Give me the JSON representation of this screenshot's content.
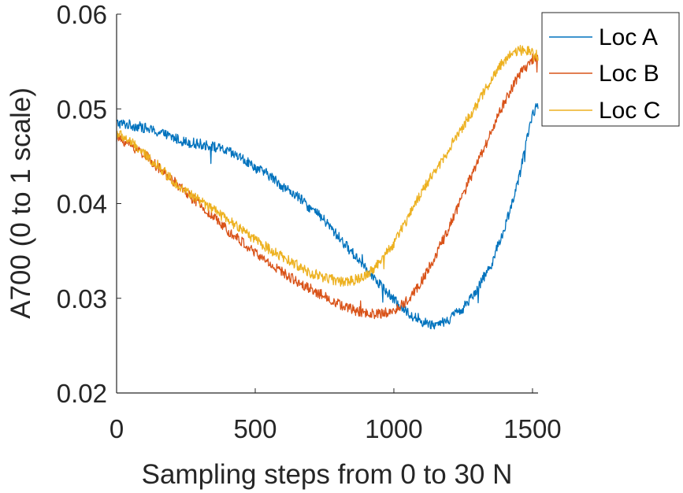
{
  "chart_data": {
    "type": "line",
    "title": "",
    "xlabel": "Sampling steps from 0 to 30 N",
    "ylabel": "A700 (0 to 1 scale)",
    "xlim": [
      0,
      1520
    ],
    "ylim": [
      0.02,
      0.06
    ],
    "xticks": [
      0,
      500,
      1000,
      1500
    ],
    "xtick_labels": [
      "0",
      "500",
      "1000",
      "1500"
    ],
    "yticks": [
      0.02,
      0.03,
      0.04,
      0.05,
      0.06
    ],
    "ytick_labels": [
      "0.02",
      "0.03",
      "0.04",
      "0.05",
      "0.06"
    ],
    "grid": false,
    "legend_position": "top-right",
    "series": [
      {
        "name": "Loc A",
        "color": "#0072BD",
        "x": [
          0,
          50,
          100,
          150,
          200,
          250,
          300,
          350,
          400,
          450,
          500,
          550,
          600,
          650,
          700,
          750,
          800,
          850,
          900,
          950,
          1000,
          1050,
          1100,
          1150,
          1200,
          1250,
          1300,
          1350,
          1400,
          1450,
          1500,
          1520
        ],
        "y": [
          0.0485,
          0.0483,
          0.048,
          0.0475,
          0.047,
          0.0465,
          0.0463,
          0.046,
          0.0455,
          0.0448,
          0.0438,
          0.043,
          0.0418,
          0.0408,
          0.0395,
          0.0382,
          0.0365,
          0.0348,
          0.0333,
          0.0315,
          0.0298,
          0.0285,
          0.0275,
          0.0272,
          0.0278,
          0.029,
          0.031,
          0.0335,
          0.0375,
          0.0425,
          0.0495,
          0.0505
        ]
      },
      {
        "name": "Loc B",
        "color": "#D95319",
        "x": [
          0,
          50,
          100,
          150,
          200,
          250,
          300,
          350,
          400,
          450,
          500,
          550,
          600,
          650,
          700,
          750,
          800,
          850,
          900,
          950,
          1000,
          1050,
          1100,
          1150,
          1200,
          1250,
          1300,
          1350,
          1400,
          1450,
          1500,
          1520
        ],
        "y": [
          0.047,
          0.0462,
          0.0452,
          0.0438,
          0.0425,
          0.0412,
          0.0398,
          0.0385,
          0.0372,
          0.036,
          0.0348,
          0.0337,
          0.0327,
          0.0318,
          0.031,
          0.0302,
          0.0294,
          0.0288,
          0.0284,
          0.0283,
          0.0287,
          0.0298,
          0.0318,
          0.0345,
          0.0375,
          0.041,
          0.0442,
          0.0475,
          0.0508,
          0.0535,
          0.0553,
          0.0556
        ]
      },
      {
        "name": "Loc C",
        "color": "#EDB120",
        "x": [
          0,
          50,
          100,
          150,
          200,
          250,
          300,
          350,
          400,
          450,
          500,
          550,
          600,
          650,
          700,
          750,
          800,
          850,
          900,
          950,
          1000,
          1050,
          1100,
          1150,
          1200,
          1250,
          1300,
          1350,
          1400,
          1450,
          1500,
          1520
        ],
        "y": [
          0.0475,
          0.0465,
          0.0452,
          0.044,
          0.0425,
          0.0413,
          0.0403,
          0.0393,
          0.0383,
          0.0373,
          0.0362,
          0.0352,
          0.0343,
          0.0335,
          0.0327,
          0.0322,
          0.0318,
          0.0318,
          0.0325,
          0.0338,
          0.0358,
          0.0385,
          0.0412,
          0.0435,
          0.0458,
          0.0482,
          0.0505,
          0.053,
          0.0552,
          0.0562,
          0.0562,
          0.0555
        ]
      }
    ]
  }
}
